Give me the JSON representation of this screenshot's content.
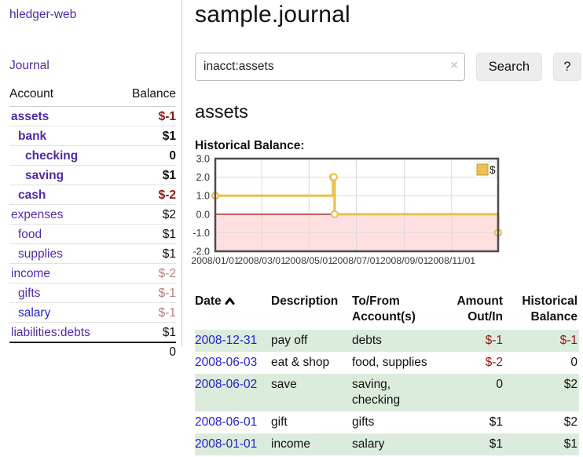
{
  "colors": {
    "accent_purple": "#5229a6",
    "link_blue": "#2323cc",
    "negative_strong": "#8e1515",
    "negative_faded": "#b97e7e",
    "row_green": "#dcecdc",
    "button_bg": "#ededed",
    "series_yellow": "#e9c34d",
    "negative_region_pink": "#ffdfdf",
    "zero_line_red": "#a01414"
  },
  "sidebar": {
    "brand": "hledger-web",
    "journal_link": "Journal",
    "accounts_table": {
      "headers": {
        "account": "Account",
        "balance": "Balance"
      },
      "rows": [
        {
          "name": "assets",
          "level": 1,
          "bold": true,
          "balance": "$-1"
        },
        {
          "name": "bank",
          "level": 2,
          "bold": true,
          "balance": "$1"
        },
        {
          "name": "checking",
          "level": 3,
          "bold": true,
          "balance": "0"
        },
        {
          "name": "saving",
          "level": 3,
          "bold": true,
          "balance": "$1"
        },
        {
          "name": "cash",
          "level": 2,
          "bold": true,
          "balance": "$-2"
        },
        {
          "name": "expenses",
          "level": 1,
          "bold": false,
          "balance": "$2"
        },
        {
          "name": "food",
          "level": 2,
          "bold": false,
          "balance": "$1"
        },
        {
          "name": "supplies",
          "level": 2,
          "bold": false,
          "balance": "$1"
        },
        {
          "name": "income",
          "level": 1,
          "bold": false,
          "balance": "$-2"
        },
        {
          "name": "gifts",
          "level": 2,
          "bold": false,
          "balance": "$-1"
        },
        {
          "name": "salary",
          "level": 2,
          "bold": false,
          "balance": "$-1",
          "link_style": "unvisited"
        },
        {
          "name": "liabilities:debts",
          "level": 1,
          "bold": false,
          "balance": "$1"
        }
      ],
      "total": "0"
    }
  },
  "main": {
    "title": "sample.journal",
    "search": {
      "value": "inacct:assets",
      "clear_icon": "×",
      "button_label": "Search",
      "help_label": "?"
    },
    "account_heading": "assets",
    "chart_label": "Historical Balance:"
  },
  "chart_data": {
    "type": "line",
    "title": "Historical Balance",
    "step": true,
    "series": [
      {
        "name": "$",
        "color": "#e9c34d",
        "points": [
          [
            "2008-01-01",
            1
          ],
          [
            "2008-06-01",
            2
          ],
          [
            "2008-06-02",
            2
          ],
          [
            "2008-06-03",
            0
          ],
          [
            "2008-12-31",
            -1
          ]
        ]
      }
    ],
    "x_range": [
      "2008-01-01",
      "2008-12-31"
    ],
    "ylim": [
      -2,
      3
    ],
    "y_ticks": [
      {
        "value": 3,
        "label": "3.0"
      },
      {
        "value": 2,
        "label": "2.0"
      },
      {
        "value": 1,
        "label": "1.0"
      },
      {
        "value": 0,
        "label": "0.0"
      },
      {
        "value": -1,
        "label": "-1.0"
      },
      {
        "value": -2,
        "label": "-2.0"
      }
    ],
    "x_ticks": [
      {
        "date": "2008-01-01",
        "label": "2008/01/01"
      },
      {
        "date": "2008-03-01",
        "label": "2008/03/01"
      },
      {
        "date": "2008-05-01",
        "label": "2008/05/01"
      },
      {
        "date": "2008-07-01",
        "label": "2008/07/01"
      },
      {
        "date": "2008-09-01",
        "label": "2008/09/01"
      },
      {
        "date": "2008-11-01",
        "label": "2008/11/01"
      }
    ],
    "legend": {
      "label": "$",
      "position": "top-right"
    },
    "grid": true,
    "negative_region": true
  },
  "register": {
    "headers": {
      "date": "Date",
      "description": "Description",
      "tofrom": "To/From Account(s)",
      "amount": "Amount Out/In",
      "balance": "Historical Balance"
    },
    "rows": [
      {
        "date": "2008-12-31",
        "description": "pay off",
        "accounts": "debts",
        "amount": "$-1",
        "balance": "$-1"
      },
      {
        "date": "2008-06-03",
        "description": "eat & shop",
        "accounts": "food, supplies",
        "amount": "$-2",
        "balance": "0"
      },
      {
        "date": "2008-06-02",
        "description": "save",
        "accounts": "saving, checking",
        "amount": "0",
        "balance": "$2"
      },
      {
        "date": "2008-06-01",
        "description": "gift",
        "accounts": "gifts",
        "amount": "$1",
        "balance": "$2"
      },
      {
        "date": "2008-01-01",
        "description": "income",
        "accounts": "salary",
        "amount": "$1",
        "balance": "$1"
      }
    ]
  }
}
